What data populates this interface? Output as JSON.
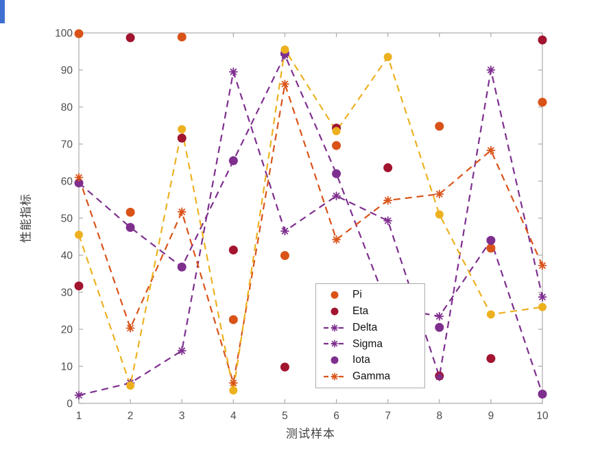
{
  "window": {
    "edge_artifact_color": "#3e6fd1"
  },
  "axes": {
    "box_color": "#a9a9a9",
    "tick_label_color": "#4c4c4c",
    "label_color": "#3f3f3f",
    "background": "#ffffff"
  },
  "chart_data": {
    "type": "line",
    "title": "",
    "xlabel": "测试样本",
    "ylabel": "性能指标",
    "x": [
      1,
      2,
      3,
      4,
      5,
      6,
      7,
      8,
      9,
      10
    ],
    "xlim": [
      1,
      10
    ],
    "ylim": [
      0,
      100
    ],
    "xticks": [
      "1",
      "2",
      "3",
      "4",
      "5",
      "6",
      "7",
      "8",
      "9",
      "10"
    ],
    "yticks": [
      "0",
      "10",
      "20",
      "30",
      "40",
      "50",
      "60",
      "70",
      "80",
      "90",
      "100"
    ],
    "grid": false,
    "legend": {
      "position": "inside-lower-right",
      "entries": [
        "Pi",
        "Eta",
        "Delta",
        "Sigma",
        "Iota",
        "Gamma"
      ]
    },
    "series": [
      {
        "name": "Pi",
        "kind": "scatter",
        "marker": "circle",
        "linestyle": "none",
        "color": "#D95319",
        "in_legend": true,
        "values": [
          99.8,
          51.6,
          98.9,
          22.6,
          39.9,
          69.6,
          25.0,
          74.8,
          41.9,
          81.3
        ]
      },
      {
        "name": "Eta",
        "kind": "scatter",
        "marker": "circle",
        "linestyle": "none",
        "color": "#A2142F",
        "in_legend": true,
        "values": [
          31.7,
          98.7,
          71.6,
          41.4,
          9.8,
          74.3,
          63.6,
          7.4,
          12.1,
          98.1
        ]
      },
      {
        "name": "Delta",
        "kind": "line",
        "marker": "asterisk",
        "linestyle": "dashed",
        "color": "#7E2F8E",
        "in_legend": true,
        "values": [
          2.2,
          5.5,
          14.2,
          89.5,
          46.5,
          56.0,
          49.3,
          7.2,
          90.0,
          28.7
        ]
      },
      {
        "name": "Sigma",
        "kind": "line",
        "marker": "asterisk",
        "linestyle": "dashed",
        "color": "#7E2F8E",
        "in_legend": true,
        "values": [
          59.5,
          47.5,
          36.8,
          65.5,
          94.0,
          62.0,
          26.0,
          23.5,
          44.0,
          2.5
        ]
      },
      {
        "name": "Iota",
        "kind": "scatter",
        "marker": "circle",
        "linestyle": "none",
        "color": "#7E2F8E",
        "in_legend": true,
        "values": [
          59.5,
          47.5,
          36.8,
          65.5,
          94.5,
          62.0,
          28.0,
          20.5,
          44.0,
          2.5
        ]
      },
      {
        "name": "Gamma",
        "kind": "line",
        "marker": "asterisk",
        "linestyle": "dashed",
        "color": "#D95319",
        "in_legend": true,
        "values": [
          61.0,
          20.3,
          51.7,
          5.5,
          86.2,
          44.2,
          54.8,
          56.5,
          68.3,
          37.2
        ]
      },
      {
        "name": "unlabeled-yellow",
        "kind": "line",
        "marker": "circle",
        "linestyle": "dashed",
        "color": "#EDB120",
        "in_legend": false,
        "values": [
          45.5,
          4.8,
          74.0,
          3.5,
          95.5,
          73.5,
          93.5,
          51.0,
          24.0,
          26.0
        ]
      }
    ]
  }
}
